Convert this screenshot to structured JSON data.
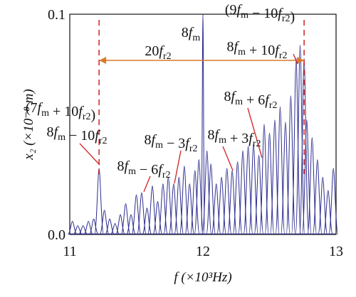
{
  "chart_data": {
    "type": "line",
    "xlabel": "f (×10³Hz)",
    "ylabel": "x₂ (×10⁻⁸ m)",
    "xlim": [
      11,
      13
    ],
    "ylim": [
      0,
      0.1
    ],
    "xticks": [
      "11",
      "12",
      "13"
    ],
    "yticks": [
      "0.0",
      "0.1"
    ],
    "colors": {
      "series": "#2b2b8f",
      "annotation": "#d97a2a",
      "leader": "#d32f2f"
    },
    "series": [
      {
        "peaks": [
          [
            11.02,
            0.006
          ],
          [
            11.06,
            0.004
          ],
          [
            11.1,
            0.004
          ],
          [
            11.14,
            0.006
          ],
          [
            11.18,
            0.007
          ],
          [
            11.22,
            0.03
          ],
          [
            11.26,
            0.011
          ],
          [
            11.3,
            0.007
          ],
          [
            11.34,
            0.005
          ],
          [
            11.38,
            0.009
          ],
          [
            11.42,
            0.014
          ],
          [
            11.46,
            0.009
          ],
          [
            11.5,
            0.018
          ],
          [
            11.54,
            0.019
          ],
          [
            11.58,
            0.012
          ],
          [
            11.62,
            0.022
          ],
          [
            11.66,
            0.015
          ],
          [
            11.7,
            0.023
          ],
          [
            11.74,
            0.026
          ],
          [
            11.78,
            0.023
          ],
          [
            11.82,
            0.026
          ],
          [
            11.86,
            0.031
          ],
          [
            11.9,
            0.023
          ],
          [
            11.94,
            0.029
          ],
          [
            11.97,
            0.034
          ],
          [
            12.0,
            0.1
          ],
          [
            12.03,
            0.038
          ],
          [
            12.06,
            0.032
          ],
          [
            12.1,
            0.023
          ],
          [
            12.14,
            0.026
          ],
          [
            12.18,
            0.03
          ],
          [
            12.22,
            0.029
          ],
          [
            12.26,
            0.033
          ],
          [
            12.3,
            0.038
          ],
          [
            12.34,
            0.04
          ],
          [
            12.38,
            0.041
          ],
          [
            12.42,
            0.036
          ],
          [
            12.46,
            0.05
          ],
          [
            12.5,
            0.046
          ],
          [
            12.54,
            0.052
          ],
          [
            12.58,
            0.058
          ],
          [
            12.62,
            0.051
          ],
          [
            12.66,
            0.063
          ],
          [
            12.7,
            0.08
          ],
          [
            12.73,
            0.086
          ],
          [
            12.76,
            0.08
          ],
          [
            12.78,
            0.052
          ],
          [
            12.82,
            0.044
          ],
          [
            12.86,
            0.034
          ],
          [
            12.9,
            0.026
          ],
          [
            12.94,
            0.02
          ],
          [
            12.98,
            0.03
          ]
        ]
      }
    ],
    "reference_lines": [
      11.22,
      12.76
    ],
    "span": {
      "from": 11.22,
      "to": 12.76,
      "y": 0.08,
      "label": "20f_r2"
    },
    "annotations": [
      {
        "id": "label-8fm",
        "text": "8f_m",
        "color": "#111111"
      },
      {
        "id": "label-9fm-10fr2",
        "text": "(9f_m − 10f_r2)",
        "color": "#d97a2a"
      },
      {
        "id": "label-8fm-plus-10fr2",
        "text": "8f_m + 10f_r2",
        "color": "#111111"
      },
      {
        "id": "label-7fm-plus-10fr2",
        "text": "(7f_m + 10f_r2)",
        "color": "#d97a2a"
      },
      {
        "id": "label-8fm-minus-10fr2",
        "text": "8f_m − 10f_r2",
        "color": "#111111"
      },
      {
        "id": "label-8fm-minus-6fr2",
        "text": "8f_m − 6f_r2",
        "color": "#111111"
      },
      {
        "id": "label-8fm-minus-3fr2",
        "text": "8f_m − 3f_r2",
        "color": "#111111"
      },
      {
        "id": "label-8fm-plus-3fr2",
        "text": "8f_m + 3f_r2",
        "color": "#111111"
      },
      {
        "id": "label-8fm-plus-6fr2",
        "text": "8f_m + 6f_r2",
        "color": "#111111"
      }
    ]
  }
}
